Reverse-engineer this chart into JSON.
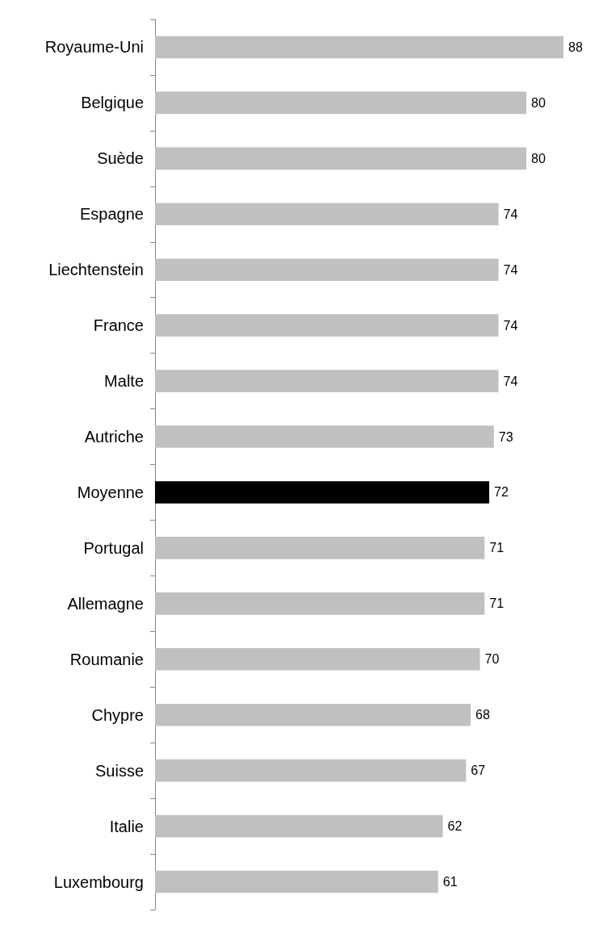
{
  "chart_data": {
    "type": "bar",
    "orientation": "horizontal",
    "categories": [
      "Royaume-Uni",
      "Belgique",
      "Suède",
      "Espagne",
      "Liechtenstein",
      "France",
      "Malte",
      "Autriche",
      "Moyenne",
      "Portugal",
      "Allemagne",
      "Roumanie",
      "Chypre",
      "Suisse",
      "Italie",
      "Luxembourg"
    ],
    "values": [
      88,
      80,
      80,
      74,
      74,
      74,
      74,
      73,
      72,
      71,
      71,
      70,
      68,
      67,
      62,
      61
    ],
    "colors": [
      "#c0c0c0",
      "#c0c0c0",
      "#c0c0c0",
      "#c0c0c0",
      "#c0c0c0",
      "#c0c0c0",
      "#c0c0c0",
      "#c0c0c0",
      "#000000",
      "#c0c0c0",
      "#c0c0c0",
      "#c0c0c0",
      "#c0c0c0",
      "#c0c0c0",
      "#c0c0c0",
      "#c0c0c0"
    ],
    "data_labels": true,
    "grid": false
  }
}
